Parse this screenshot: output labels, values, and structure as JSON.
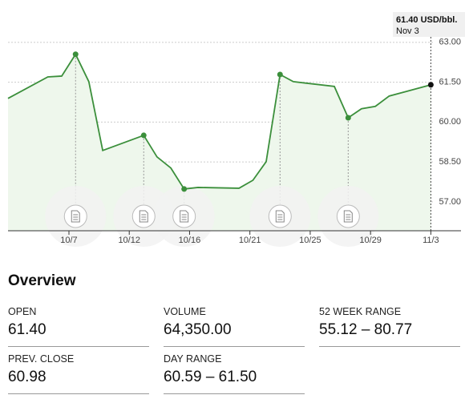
{
  "chart_data": {
    "type": "line",
    "x": [
      -1.01,
      -0.35,
      -0.12,
      0.11,
      0.33,
      0.56,
      1.24,
      1.46,
      1.69,
      1.91,
      2.14,
      2.82,
      3.05,
      3.27,
      3.5,
      3.72,
      4.4,
      4.63,
      4.85,
      5.08,
      5.31,
      6.0
    ],
    "series": [
      {
        "color": "#3b8f3b",
        "values": [
          60.89,
          61.7,
          61.73,
          62.55,
          61.52,
          58.93,
          59.5,
          58.69,
          58.27,
          57.48,
          57.54,
          57.51,
          57.81,
          58.51,
          61.79,
          61.52,
          61.34,
          60.16,
          60.5,
          60.59,
          60.98,
          61.4
        ]
      }
    ],
    "xlim": [
      -1.01,
      6.5
    ],
    "xticks": [
      {
        "value": 0,
        "label": "10/7"
      },
      {
        "value": 1,
        "label": "10/12"
      },
      {
        "value": 2,
        "label": "10/16"
      },
      {
        "value": 3,
        "label": "10/21"
      },
      {
        "value": 4,
        "label": "10/25"
      },
      {
        "value": 5,
        "label": "10/29"
      },
      {
        "value": 6,
        "label": "11/3"
      }
    ],
    "ylim": [
      55.91,
      63.99
    ],
    "yticks": [
      {
        "value": 57,
        "label": "57.00"
      },
      {
        "value": 58.5,
        "label": "58.50"
      },
      {
        "value": 60,
        "label": "60.00"
      },
      {
        "value": 61.5,
        "label": "61.50"
      },
      {
        "value": 63,
        "label": "63.00"
      }
    ],
    "grid": true,
    "markers": [
      3,
      6,
      9,
      14,
      17
    ],
    "tooltip": {
      "price": "61.40 USD/bbl.",
      "date": "Nov 3"
    }
  },
  "overview": {
    "title": "Overview",
    "items": [
      {
        "label": "OPEN",
        "value": "61.40"
      },
      {
        "label": "VOLUME",
        "value": "64,350.00"
      },
      {
        "label": "52 WEEK RANGE",
        "value": "55.12 – 80.77"
      },
      {
        "label": "PREV. CLOSE",
        "value": "60.98"
      },
      {
        "label": "DAY RANGE",
        "value": "60.59 – 61.50"
      }
    ]
  }
}
